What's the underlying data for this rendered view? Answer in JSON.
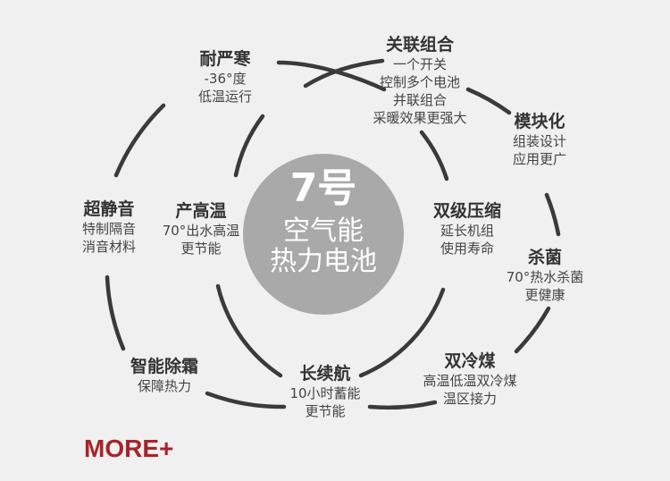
{
  "center": {
    "number": "7号",
    "line1": "空气能",
    "line2": "热力电池"
  },
  "features": [
    {
      "id": "cold-resistant",
      "title": "耐严寒",
      "lines": [
        "-36°度",
        "低温运行"
      ]
    },
    {
      "id": "associated-combination",
      "title": "关联组合",
      "lines": [
        "一个开关",
        "控制多个电池",
        "并联组合",
        "采暖效果更强大"
      ]
    },
    {
      "id": "modular",
      "title": "模块化",
      "lines": [
        "组装设计",
        "应用更广"
      ]
    },
    {
      "id": "super-quiet",
      "title": "超静音",
      "lines": [
        "特制隔音",
        "消音材料"
      ]
    },
    {
      "id": "high-temp",
      "title": "产高温",
      "lines": [
        "70°出水高温",
        "更节能"
      ]
    },
    {
      "id": "dual-compression",
      "title": "双级压缩",
      "lines": [
        "延长机组",
        "使用寿命"
      ]
    },
    {
      "id": "sterilization",
      "title": "杀菌",
      "lines": [
        "70°热水杀菌",
        "更健康"
      ]
    },
    {
      "id": "smart-defrost",
      "title": "智能除霜",
      "lines": [
        "保障热力"
      ]
    },
    {
      "id": "long-endurance",
      "title": "长续航",
      "lines": [
        "10小时蓄能",
        "更节能"
      ]
    },
    {
      "id": "dual-cooling",
      "title": "双冷煤",
      "lines": [
        "高温低温双冷煤",
        "温区接力"
      ]
    }
  ],
  "more_label": "MORE+"
}
